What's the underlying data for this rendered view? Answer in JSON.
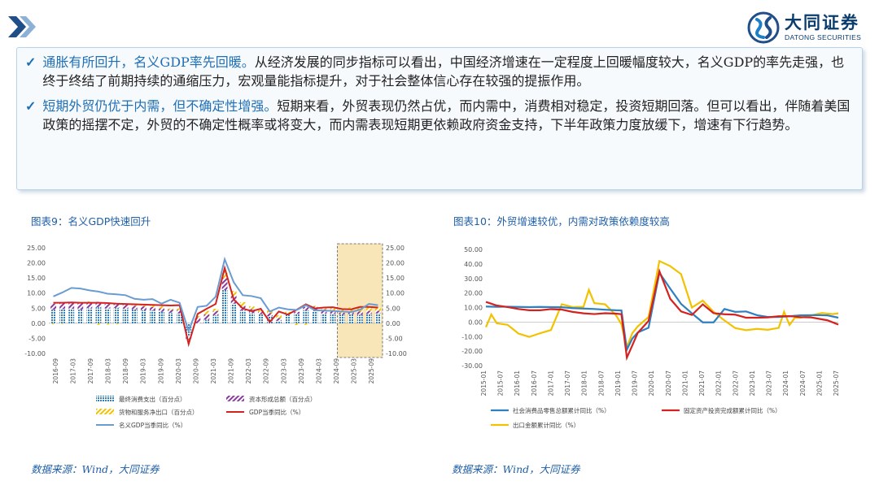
{
  "header": {
    "logo_cn": "大同证券",
    "logo_en": "DATONG SECURITIES"
  },
  "summary": {
    "p1_heading": "通胀有所回升，名义GDP率先回暖。",
    "p1_body": "从经济发展的同步指标可以看出，中国经济增速在一定程度上回暖幅度较大，名义GDP的率先走强，也终于终结了前期持续的通缩压力，宏观量能指标提升，对于社会整体信心存在较强的提振作用。",
    "p2_heading": "短期外贸仍优于内需，但不确定性增强。",
    "p2_body": "短期来看，外贸表现仍然占优，而内需中，消费相对稳定，投资短期回落。但可以看出，伴随着美国政策的摇摆不定，外贸的不确定性概率或将变大，而内需表现短期更依赖政府资金支持，下半年政策力度放缓下，增速有下行趋势。"
  },
  "colors": {
    "accent": "#1f5fa8",
    "series_blue": "#2f7fc1",
    "series_red": "#d4221e",
    "series_yellow": "#f2c200",
    "series_lightblue": "#6a9cd0",
    "series_purple": "#8a3a9c",
    "highlight": "#f8e6b8"
  },
  "chart_data": [
    {
      "type": "bar",
      "title": "图表9：名义GDP快速回升",
      "source": "数据来源：Wind，大同证券",
      "ylim": [
        -10,
        25
      ],
      "yticks": [
        "25.00",
        "20.00",
        "15.00",
        "10.00",
        "5.00",
        "0.00",
        "-5.00",
        "-10.00"
      ],
      "y2ticks": [
        "25.00",
        "20.00",
        "15.00",
        "10.00",
        "5.00",
        "0.00",
        "-5.00",
        "-10.00"
      ],
      "x_tick_labels": [
        "2016-09",
        "2017-03",
        "2017-09",
        "2018-03",
        "2018-09",
        "2019-03",
        "2019-09",
        "2020-03",
        "2020-09",
        "2021-03",
        "2021-09",
        "2022-03",
        "2022-09",
        "2023-03",
        "2023-09",
        "2024-03",
        "2024-09",
        "2025-03",
        "2025-09"
      ],
      "highlight_range": [
        32,
        36
      ],
      "legend_position": "bottom",
      "series": [
        {
          "name": "最终消费支出（百分点）",
          "kind": "bar_hatch",
          "values": [
            4.5,
            4.7,
            4.8,
            4.5,
            5.0,
            5.3,
            4.9,
            5.1,
            4.8,
            4.6,
            4.3,
            4.2,
            3.8,
            3.5,
            3.3,
            -4.4,
            -0.2,
            1.2,
            2.6,
            11.0,
            6.5,
            4.2,
            3.4,
            3.0,
            2.3,
            0.8,
            2.9,
            3.1,
            4.3,
            4.0,
            3.2,
            3.1,
            2.9,
            3.0,
            2.8,
            3.1,
            3.3
          ]
        },
        {
          "name": "资本形成总额（百分点）",
          "kind": "bar_purple",
          "values": [
            2.0,
            2.3,
            2.2,
            2.1,
            2.0,
            1.8,
            1.5,
            1.3,
            1.5,
            1.2,
            1.3,
            1.2,
            1.1,
            1.0,
            1.1,
            -1.0,
            1.9,
            1.7,
            1.4,
            4.0,
            2.5,
            1.5,
            1.3,
            0.7,
            1.1,
            0.9,
            0.3,
            0.7,
            1.1,
            1.5,
            1.4,
            1.1,
            0.6,
            1.0,
            1.1,
            1.0,
            0.8
          ]
        },
        {
          "name": "货物和服务净出口（百分点）",
          "kind": "bar_yellow",
          "values": [
            -0.3,
            -0.2,
            0.1,
            0.3,
            0.2,
            -0.5,
            -0.4,
            -0.3,
            0.1,
            0.4,
            0.6,
            0.9,
            0.7,
            0.4,
            0.5,
            -0.4,
            0.5,
            1.2,
            0.8,
            2.3,
            1.7,
            1.3,
            0.9,
            0.6,
            0.9,
            1.0,
            0.6,
            -0.6,
            -0.5,
            0.3,
            0.6,
            0.9,
            1.3,
            1.2,
            1.2,
            1.1,
            1.0
          ]
        },
        {
          "name": "GDP当季同比（%）",
          "kind": "line_red",
          "values": [
            6.8,
            6.8,
            6.9,
            6.8,
            6.8,
            6.8,
            6.7,
            6.5,
            6.4,
            6.3,
            6.2,
            6.1,
            6.0,
            5.9,
            6.0,
            -6.9,
            3.1,
            4.8,
            6.4,
            18.3,
            7.9,
            4.9,
            4.0,
            4.8,
            0.4,
            3.9,
            2.9,
            4.5,
            6.3,
            4.9,
            5.2,
            5.3,
            4.7,
            4.6,
            5.4,
            5.4,
            5.2
          ]
        },
        {
          "name": "名义GDP当季同比（%）",
          "kind": "line_blue",
          "values": [
            8.9,
            10.2,
            11.7,
            11.5,
            10.9,
            10.5,
            9.8,
            9.6,
            9.3,
            8.1,
            7.8,
            8.0,
            6.5,
            7.8,
            6.8,
            -2.6,
            5.4,
            5.8,
            8.8,
            21.2,
            13.6,
            9.3,
            9.0,
            8.3,
            3.9,
            5.2,
            4.6,
            4.4,
            6.0,
            4.3,
            4.2,
            4.1,
            3.9,
            3.7,
            4.5,
            6.4,
            6.0
          ]
        }
      ]
    },
    {
      "type": "line",
      "title": "图表10：外贸增速较优，内需对政策依赖度较高",
      "source": "数据来源：Wind，大同证券",
      "ylim": [
        -30,
        50
      ],
      "yticks": [
        "50.00",
        "40.00",
        "30.00",
        "20.00",
        "10.00",
        "0.00",
        "-10.00",
        "-20.00",
        "-30.00"
      ],
      "x_tick_labels": [
        "2015-01",
        "2015-07",
        "2016-01",
        "2016-07",
        "2017-01",
        "2017-07",
        "2018-01",
        "2018-07",
        "2019-01",
        "2019-07",
        "2020-01",
        "2020-07",
        "2021-01",
        "2021-07",
        "2022-01",
        "2022-07",
        "2023-01",
        "2023-07",
        "2024-01",
        "2024-07",
        "2025-01",
        "2025-07"
      ],
      "legend_position": "bottom",
      "series": [
        {
          "name": "社会消费品零售总额累计同比（%）",
          "color": "blue",
          "x": [
            0,
            4,
            8,
            12,
            16,
            20,
            24,
            28,
            32,
            36,
            40,
            44,
            48,
            50,
            52,
            54,
            56,
            60,
            64,
            68,
            72,
            76,
            80,
            84,
            87,
            88,
            92,
            96,
            100,
            104,
            108,
            112,
            116,
            122,
            126,
            130
          ],
          "values": [
            10.7,
            10.5,
            10.6,
            10.4,
            10.3,
            10.4,
            10.3,
            10.2,
            9.6,
            9.3,
            9.0,
            8.5,
            8.1,
            8.0,
            -19.0,
            -11.4,
            -7.2,
            -3.9,
            33.9,
            23.0,
            12.5,
            6.0,
            -0.2,
            -0.2,
            6.7,
            9.0,
            7.0,
            7.3,
            4.7,
            3.5,
            3.5,
            4.0,
            4.6,
            4.8,
            4.6,
            3.0
          ]
        },
        {
          "name": "固定资产投资完成额累计同比（%）",
          "color": "red",
          "x": [
            0,
            4,
            8,
            12,
            16,
            20,
            24,
            28,
            32,
            36,
            40,
            44,
            48,
            50,
            52,
            54,
            56,
            60,
            64,
            68,
            72,
            76,
            80,
            84,
            88,
            92,
            96,
            100,
            104,
            108,
            112,
            116,
            120,
            126,
            130
          ],
          "values": [
            13.9,
            11.4,
            10.3,
            9.0,
            8.1,
            8.1,
            8.9,
            8.6,
            7.0,
            6.0,
            5.5,
            6.1,
            5.8,
            5.4,
            -24.5,
            -16.1,
            -7.5,
            0.8,
            35.0,
            16.0,
            7.3,
            4.9,
            12.2,
            6.1,
            5.4,
            5.1,
            3.0,
            3.0,
            3.2,
            4.0,
            4.1,
            3.4,
            3.2,
            1.2,
            -1.7
          ]
        },
        {
          "name": "出口金额累计同比（%）",
          "color": "yellow",
          "x": [
            0,
            2,
            4,
            8,
            12,
            16,
            20,
            24,
            28,
            32,
            36,
            38,
            40,
            44,
            48,
            50,
            52,
            54,
            56,
            60,
            64,
            68,
            72,
            76,
            80,
            84,
            88,
            92,
            96,
            100,
            104,
            108,
            110,
            112,
            114,
            116,
            120,
            124,
            128,
            130
          ],
          "values": [
            -3.5,
            5.2,
            -0.8,
            -1.9,
            -7.9,
            -10.2,
            -7.7,
            -5.5,
            12.3,
            10.3,
            10.5,
            22.2,
            13.0,
            12.2,
            4.7,
            -1.6,
            -17.2,
            -7.7,
            -3.0,
            3.5,
            42.0,
            38.5,
            33.0,
            10.0,
            14.8,
            7.0,
            1.1,
            -4.2,
            -5.6,
            -4.7,
            -5.3,
            -4.0,
            7.0,
            -2.0,
            3.0,
            2.9,
            4.6,
            6.2,
            5.5,
            6.0
          ]
        }
      ]
    }
  ]
}
